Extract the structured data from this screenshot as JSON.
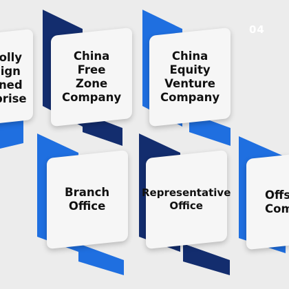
{
  "background_number": "04",
  "colors": {
    "background": "#ececec",
    "navy": "#132d6e",
    "blue": "#1f6fe0",
    "card": "#f6f6f6"
  },
  "cards": [
    {
      "label": "olly\nign\nned\nprise",
      "accent": "blue"
    },
    {
      "label": "China\nFree\nZone\nCompany",
      "accent": "navy"
    },
    {
      "label": "China\nEquity\nVenture\nCompany",
      "accent": "blue"
    },
    {
      "label": "Branch\nOffice",
      "accent": "blue"
    },
    {
      "label": "Representative\nOffice",
      "accent": "navy"
    },
    {
      "label": "Offsh\nComp",
      "accent": "blue"
    }
  ]
}
